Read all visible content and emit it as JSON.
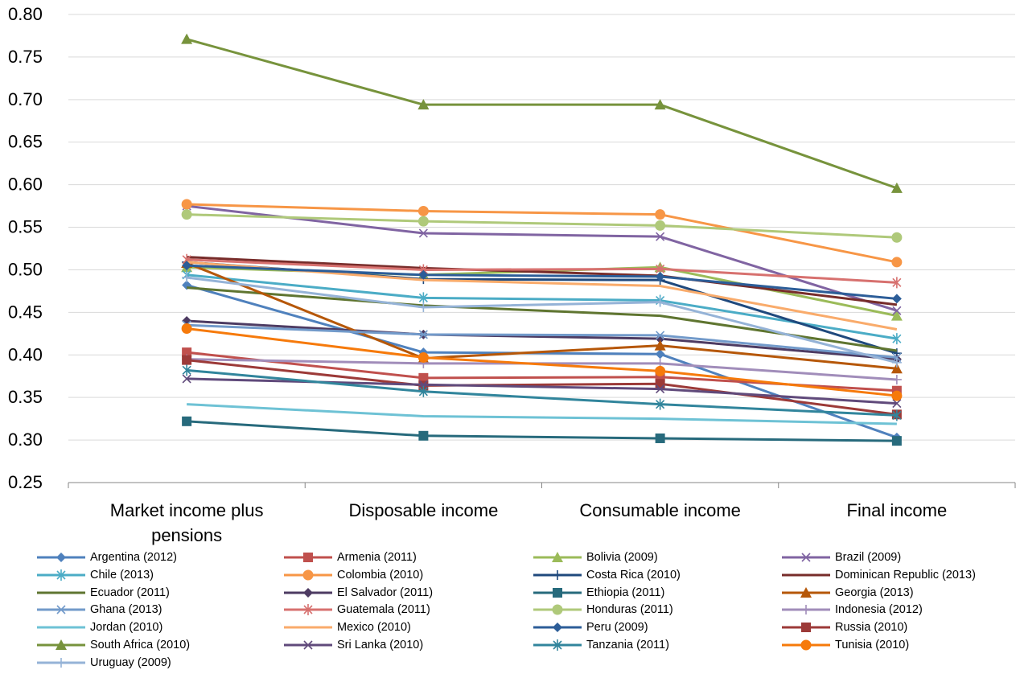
{
  "chart_data": {
    "type": "line",
    "categories": [
      "Market income plus pensions",
      "Disposable income",
      "Consumable income",
      "Final income"
    ],
    "yticks": [
      "0.25",
      "0.30",
      "0.35",
      "0.40",
      "0.45",
      "0.50",
      "0.55",
      "0.60",
      "0.65",
      "0.70",
      "0.75",
      "0.80"
    ],
    "ylim": [
      0.25,
      0.8
    ],
    "grid": true,
    "legend_position": "bottom",
    "series": [
      {
        "name": "Argentina (2012)",
        "color": "#4F81BD",
        "marker": "diamond",
        "values": [
          0.482,
          0.403,
          0.401,
          0.303
        ]
      },
      {
        "name": "Armenia (2011)",
        "color": "#C0504D",
        "marker": "square",
        "values": [
          0.403,
          0.373,
          0.374,
          0.358
        ]
      },
      {
        "name": "Bolivia (2009)",
        "color": "#9BBB59",
        "marker": "triangle",
        "values": [
          0.503,
          0.494,
          0.503,
          0.446
        ]
      },
      {
        "name": "Brazil (2009)",
        "color": "#8064A2",
        "marker": "x",
        "values": [
          0.575,
          0.543,
          0.539,
          0.452
        ]
      },
      {
        "name": "Chile (2013)",
        "color": "#4BACC6",
        "marker": "star",
        "values": [
          0.494,
          0.467,
          0.464,
          0.419
        ]
      },
      {
        "name": "Colombia (2010)",
        "color": "#F79646",
        "marker": "circle",
        "values": [
          0.577,
          0.569,
          0.565,
          0.509
        ]
      },
      {
        "name": "Costa Rica (2010)",
        "color": "#1F497D",
        "marker": "plus",
        "values": [
          0.509,
          0.489,
          0.488,
          0.402
        ]
      },
      {
        "name": "Dominican Republic (2013)",
        "color": "#772C2A",
        "marker": "none",
        "values": [
          0.515,
          0.502,
          0.493,
          0.459
        ]
      },
      {
        "name": "Ecuador (2011)",
        "color": "#5F7530",
        "marker": "none",
        "values": [
          0.479,
          0.458,
          0.446,
          0.405
        ]
      },
      {
        "name": "El Salvador (2011)",
        "color": "#4D3B62",
        "marker": "diamond",
        "values": [
          0.44,
          0.424,
          0.419,
          0.395
        ]
      },
      {
        "name": "Ethiopia (2011)",
        "color": "#276A7C",
        "marker": "square",
        "values": [
          0.322,
          0.305,
          0.302,
          0.299
        ]
      },
      {
        "name": "Georgia (2013)",
        "color": "#B65708",
        "marker": "triangle",
        "values": [
          0.508,
          0.396,
          0.411,
          0.384
        ]
      },
      {
        "name": "Ghana (2013)",
        "color": "#729ACA",
        "marker": "x",
        "values": [
          0.435,
          0.424,
          0.423,
          0.397
        ]
      },
      {
        "name": "Guatemala (2011)",
        "color": "#D7716F",
        "marker": "star",
        "values": [
          0.512,
          0.5,
          0.501,
          0.485
        ]
      },
      {
        "name": "Honduras (2011)",
        "color": "#AFC97A",
        "marker": "circle",
        "values": [
          0.565,
          0.557,
          0.552,
          0.538
        ]
      },
      {
        "name": "Indonesia (2012)",
        "color": "#A18DBA",
        "marker": "plus",
        "values": [
          0.395,
          0.39,
          0.39,
          0.371
        ]
      },
      {
        "name": "Jordan (2010)",
        "color": "#6EC2D5",
        "marker": "none",
        "values": [
          0.342,
          0.328,
          0.325,
          0.319
        ]
      },
      {
        "name": "Mexico (2010)",
        "color": "#F9AB6B",
        "marker": "none",
        "values": [
          0.509,
          0.488,
          0.481,
          0.43
        ]
      },
      {
        "name": "Peru (2009)",
        "color": "#2C5D98",
        "marker": "diamond",
        "values": [
          0.505,
          0.494,
          0.492,
          0.466
        ]
      },
      {
        "name": "Russia (2010)",
        "color": "#9C3A38",
        "marker": "square",
        "values": [
          0.394,
          0.364,
          0.366,
          0.33
        ]
      },
      {
        "name": "South Africa (2010)",
        "color": "#77933C",
        "marker": "triangle",
        "values": [
          0.771,
          0.694,
          0.694,
          0.596
        ]
      },
      {
        "name": "Sri Lanka (2010)",
        "color": "#604A7B",
        "marker": "x",
        "values": [
          0.372,
          0.365,
          0.36,
          0.343
        ]
      },
      {
        "name": "Tanzania (2011)",
        "color": "#31859C",
        "marker": "star",
        "values": [
          0.382,
          0.357,
          0.342,
          0.329
        ]
      },
      {
        "name": "Tunisia (2010)",
        "color": "#F67A0B",
        "marker": "circle",
        "values": [
          0.431,
          0.397,
          0.381,
          0.352
        ]
      },
      {
        "name": "Uruguay (2009)",
        "color": "#95B3D7",
        "marker": "plus",
        "values": [
          0.491,
          0.456,
          0.462,
          0.391
        ]
      }
    ]
  }
}
